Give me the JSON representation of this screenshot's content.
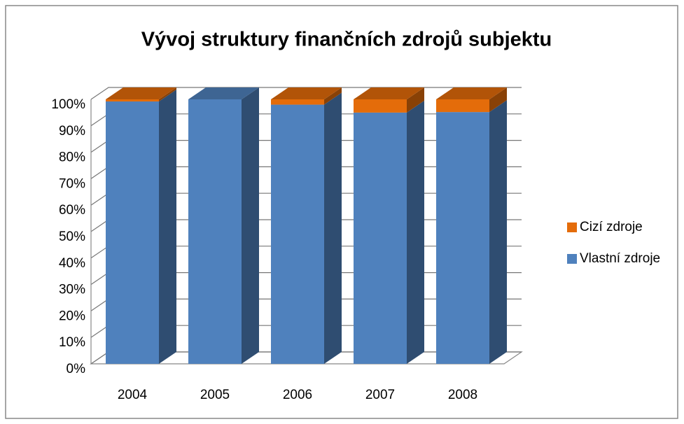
{
  "chart_data": {
    "type": "bar3d_stacked",
    "title": "Vývoj struktury finančních zdrojů subjektu",
    "categories": [
      "2004",
      "2005",
      "2006",
      "2007",
      "2008"
    ],
    "series": [
      {
        "name": "Vlastní zdroje",
        "color": "#4f81bd",
        "values": [
          99.2,
          100,
          98,
          95,
          95.2
        ]
      },
      {
        "name": "Cizí zdroje",
        "color": "#e46c0a",
        "values": [
          0.8,
          0,
          2,
          5,
          4.8
        ]
      }
    ],
    "ylim": [
      0,
      100
    ],
    "yticks": [
      {
        "value": 0,
        "label": "0%"
      },
      {
        "value": 10,
        "label": "10%"
      },
      {
        "value": 20,
        "label": "20%"
      },
      {
        "value": 30,
        "label": "30%"
      },
      {
        "value": 40,
        "label": "40%"
      },
      {
        "value": 50,
        "label": "50%"
      },
      {
        "value": 60,
        "label": "60%"
      },
      {
        "value": 70,
        "label": "70%"
      },
      {
        "value": 80,
        "label": "80%"
      },
      {
        "value": 90,
        "label": "90%"
      },
      {
        "value": 100,
        "label": "100%"
      }
    ],
    "grid": true,
    "legend": "right"
  }
}
